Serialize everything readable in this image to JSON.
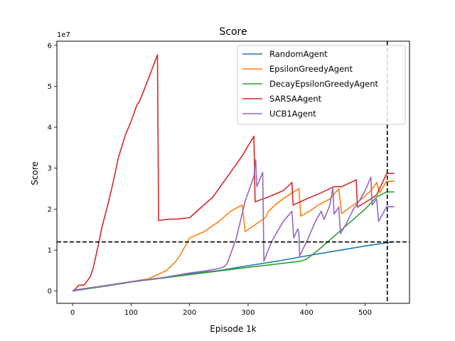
{
  "chart_data": {
    "type": "line",
    "title": "Score",
    "xlabel": "Episode 1k",
    "ylabel": "Score",
    "y_offset_label": "1e7",
    "y_scale": 10000000,
    "xlim": [
      -27,
      576
    ],
    "ylim": [
      -3,
      61
    ],
    "x_ticks": [
      0,
      100,
      200,
      300,
      400,
      500
    ],
    "y_ticks": [
      0,
      1,
      2,
      3,
      4,
      5,
      6
    ],
    "grid": false,
    "legend_position": "upper right",
    "reference_lines": [
      {
        "orientation": "horizontal",
        "value": 12,
        "style": "dashed",
        "color": "#000000"
      },
      {
        "orientation": "vertical",
        "value": 538,
        "style": "dashed",
        "color": "#000000"
      }
    ],
    "series": [
      {
        "name": "RandomAgent",
        "color": "#1f77b4",
        "points": [
          [
            0,
            0
          ],
          [
            10,
            0.4
          ],
          [
            25,
            0.7
          ],
          [
            50,
            1.1
          ],
          [
            100,
            2.2
          ],
          [
            150,
            3.2
          ],
          [
            200,
            4.2
          ],
          [
            250,
            5.0
          ],
          [
            300,
            6.2
          ],
          [
            350,
            7.3
          ],
          [
            400,
            8.6
          ],
          [
            450,
            9.8
          ],
          [
            500,
            11.0
          ],
          [
            537,
            11.8
          ],
          [
            550,
            12.0
          ]
        ]
      },
      {
        "name": "EpsilonGreedyAgent",
        "color": "#ff7f0e",
        "points": [
          [
            0,
            0
          ],
          [
            25,
            0.7
          ],
          [
            50,
            1.2
          ],
          [
            100,
            2.3
          ],
          [
            130,
            3.0
          ],
          [
            145,
            4.0
          ],
          [
            160,
            5.0
          ],
          [
            175,
            7.0
          ],
          [
            185,
            9.0
          ],
          [
            200,
            13.0
          ],
          [
            225,
            14.5
          ],
          [
            250,
            17.0
          ],
          [
            270,
            19.5
          ],
          [
            290,
            21.0
          ],
          [
            295,
            14.5
          ],
          [
            315,
            16.5
          ],
          [
            330,
            18.0
          ],
          [
            335,
            19.5
          ],
          [
            350,
            21.5
          ],
          [
            370,
            23.5
          ],
          [
            387,
            25.0
          ],
          [
            390,
            18.3
          ],
          [
            405,
            19.5
          ],
          [
            420,
            21.0
          ],
          [
            440,
            22.5
          ],
          [
            455,
            25.0
          ],
          [
            460,
            18.9
          ],
          [
            475,
            20.5
          ],
          [
            490,
            22.0
          ],
          [
            510,
            24.5
          ],
          [
            520,
            26.5
          ],
          [
            525,
            24.0
          ],
          [
            537,
            26.8
          ],
          [
            550,
            26.8
          ]
        ]
      },
      {
        "name": "DecayEpsilonGreedyAgent",
        "color": "#2ca02c",
        "points": [
          [
            0,
            0
          ],
          [
            50,
            1.1
          ],
          [
            100,
            2.2
          ],
          [
            150,
            3.1
          ],
          [
            200,
            4.0
          ],
          [
            250,
            4.9
          ],
          [
            300,
            5.8
          ],
          [
            350,
            6.6
          ],
          [
            390,
            7.3
          ],
          [
            400,
            7.8
          ],
          [
            420,
            10.0
          ],
          [
            440,
            12.5
          ],
          [
            460,
            15.0
          ],
          [
            480,
            17.5
          ],
          [
            500,
            20.0
          ],
          [
            520,
            23.0
          ],
          [
            537,
            24.2
          ],
          [
            550,
            24.2
          ]
        ]
      },
      {
        "name": "SARSAAgent",
        "color": "#d62728",
        "points": [
          [
            0,
            0
          ],
          [
            5,
            0.5
          ],
          [
            10,
            1.4
          ],
          [
            20,
            1.5
          ],
          [
            25,
            2.5
          ],
          [
            30,
            3.5
          ],
          [
            35,
            5.5
          ],
          [
            45,
            12.0
          ],
          [
            50,
            15.5
          ],
          [
            60,
            21.0
          ],
          [
            70,
            27.0
          ],
          [
            78,
            32.5
          ],
          [
            90,
            38.0
          ],
          [
            100,
            41.5
          ],
          [
            110,
            45.5
          ],
          [
            115,
            46.5
          ],
          [
            130,
            52.0
          ],
          [
            145,
            57.7
          ],
          [
            147,
            17.2
          ],
          [
            160,
            17.5
          ],
          [
            180,
            17.6
          ],
          [
            200,
            17.9
          ],
          [
            240,
            23.0
          ],
          [
            265,
            28.0
          ],
          [
            290,
            33.0
          ],
          [
            310,
            37.8
          ],
          [
            312,
            21.8
          ],
          [
            335,
            23.0
          ],
          [
            360,
            24.5
          ],
          [
            375,
            26.5
          ],
          [
            377,
            21.0
          ],
          [
            400,
            22.5
          ],
          [
            425,
            24.0
          ],
          [
            447,
            25.5
          ],
          [
            460,
            25.5
          ],
          [
            480,
            26.8
          ],
          [
            485,
            27.2
          ],
          [
            487,
            20.5
          ],
          [
            510,
            22.5
          ],
          [
            520,
            23.5
          ],
          [
            537,
            28.7
          ],
          [
            550,
            28.7
          ]
        ]
      },
      {
        "name": "UCB1Agent",
        "color": "#9467bd",
        "points": [
          [
            0,
            0
          ],
          [
            25,
            0.7
          ],
          [
            50,
            1.2
          ],
          [
            100,
            2.3
          ],
          [
            150,
            3.2
          ],
          [
            200,
            4.4
          ],
          [
            230,
            5.0
          ],
          [
            250,
            5.5
          ],
          [
            260,
            6.0
          ],
          [
            265,
            7.0
          ],
          [
            280,
            13.0
          ],
          [
            295,
            22.0
          ],
          [
            310,
            28.0
          ],
          [
            313,
            32.0
          ],
          [
            315,
            25.5
          ],
          [
            325,
            29.0
          ],
          [
            327,
            7.3
          ],
          [
            340,
            12.0
          ],
          [
            360,
            17.0
          ],
          [
            375,
            19.5
          ],
          [
            378,
            13.0
          ],
          [
            385,
            15.2
          ],
          [
            387,
            14.0
          ],
          [
            388,
            8.6
          ],
          [
            400,
            12.0
          ],
          [
            415,
            17.0
          ],
          [
            425,
            19.5
          ],
          [
            430,
            17.5
          ],
          [
            440,
            21.0
          ],
          [
            445,
            25.2
          ],
          [
            447,
            18.8
          ],
          [
            455,
            20.5
          ],
          [
            458,
            14.0
          ],
          [
            470,
            17.0
          ],
          [
            480,
            20.0
          ],
          [
            490,
            22.0
          ],
          [
            500,
            24.5
          ],
          [
            510,
            27.8
          ],
          [
            512,
            21.0
          ],
          [
            520,
            22.5
          ],
          [
            523,
            17.0
          ],
          [
            537,
            20.6
          ],
          [
            550,
            20.6
          ]
        ]
      }
    ]
  }
}
